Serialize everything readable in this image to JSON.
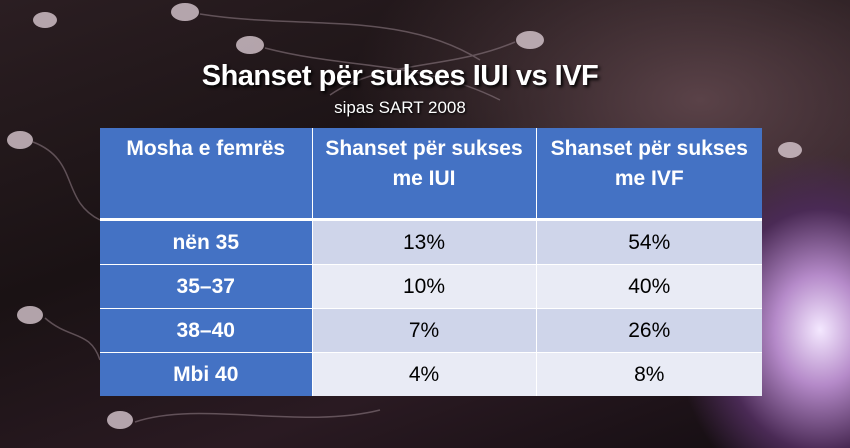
{
  "header": {
    "title": "Shanset për sukses IUI vs IVF",
    "subtitle": "sipas SART 2008"
  },
  "table": {
    "columns": [
      "Mosha e femrës",
      "Shanset për sukses me IUI",
      "Shanset për sukses me IVF"
    ],
    "rows": [
      [
        "nën 35",
        "13%",
        "54%"
      ],
      [
        "35–37",
        "10%",
        "40%"
      ],
      [
        "38–40",
        "7%",
        "26%"
      ],
      [
        "Mbi 40",
        "4%",
        "8%"
      ]
    ]
  }
}
